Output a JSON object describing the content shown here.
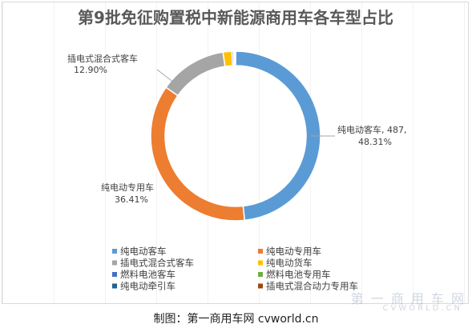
{
  "chart_data": {
    "type": "pie",
    "title": "第9批免征购置税中新能源商用车各车型占比",
    "series": [
      {
        "name": "纯电动客车",
        "value": 487,
        "percent": 48.31,
        "color": "#5b9bd5"
      },
      {
        "name": "纯电动专用车",
        "percent": 36.41,
        "color": "#ed7d31"
      },
      {
        "name": "插电式混合式客车",
        "percent": 12.9,
        "color": "#a5a5a5"
      },
      {
        "name": "纯电动货车",
        "percent": 1.7,
        "color": "#ffc000"
      },
      {
        "name": "燃料电池客车",
        "percent": 0.3,
        "color": "#4472c4"
      },
      {
        "name": "燃料电池专用车",
        "percent": 0.2,
        "color": "#70ad47"
      },
      {
        "name": "纯电动牵引车",
        "percent": 0.1,
        "color": "#255e91"
      },
      {
        "name": "插电式混合动力专用车",
        "percent": 0.08,
        "color": "#9e480e"
      }
    ],
    "data_labels": {
      "passenger_ev": {
        "line1": "纯电动客车, 487,",
        "line2": "48.31%"
      },
      "special_ev": {
        "line1": "纯电动专用车",
        "line2": "36.41%"
      },
      "phev_bus": {
        "line1": "插电式混合式客车",
        "line2": "12.90%"
      }
    },
    "legend_position": "bottom"
  },
  "footer": {
    "credit": "制图：第一商用车网 cvworld.cn",
    "watermark": "第 一 商 用 车 网",
    "watermark_sub": "CVWORLD.CN"
  }
}
